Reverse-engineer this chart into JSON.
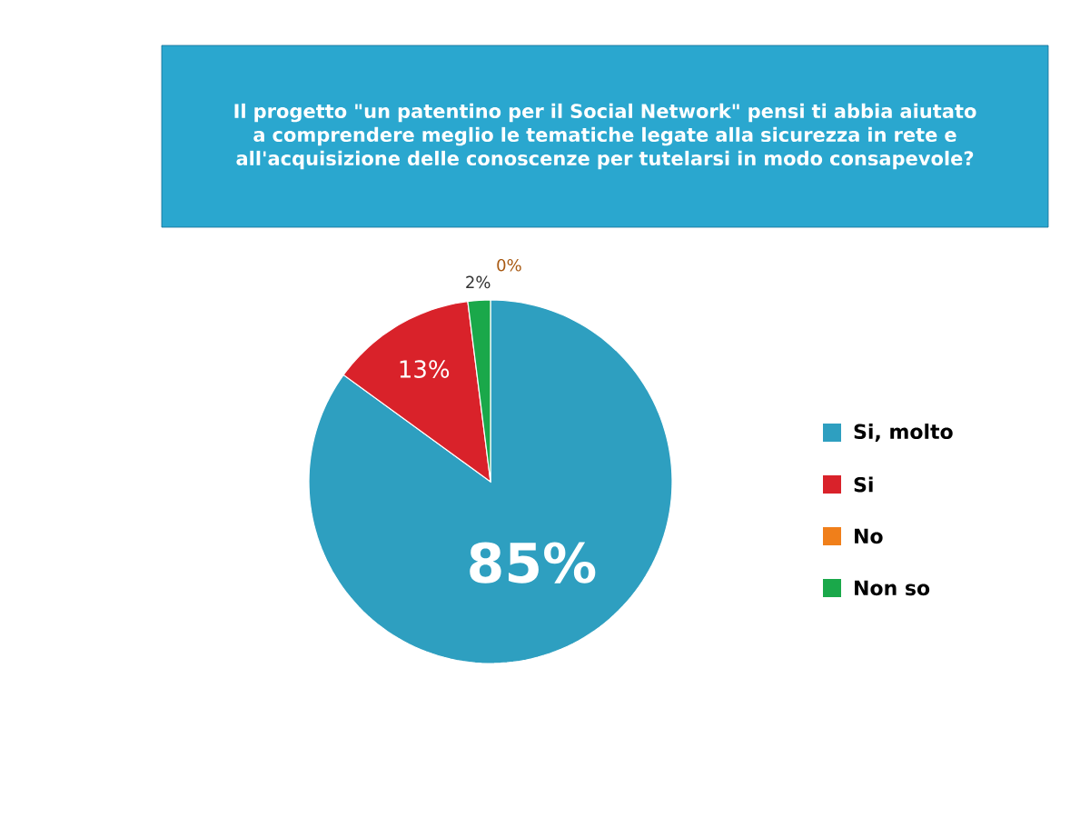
{
  "chart_data": {
    "type": "pie",
    "title": "Il progetto \"un patentino per il Social Network\" pensi ti abbia aiutato a comprendere meglio le tematiche legate alla sicurezza in rete e all'acquisizione delle conoscenze per tutelarsi in modo consapevole?",
    "categories": [
      "Si, molto",
      "Si",
      "No",
      "Non so"
    ],
    "values": [
      85,
      13,
      0,
      2
    ],
    "colors": [
      "#2e9fc0",
      "#d9222a",
      "#f07f1a",
      "#1aa84a"
    ],
    "data_labels": true,
    "value_labels": [
      "85%",
      "13%",
      "0%",
      "2%"
    ],
    "legend": "right"
  }
}
